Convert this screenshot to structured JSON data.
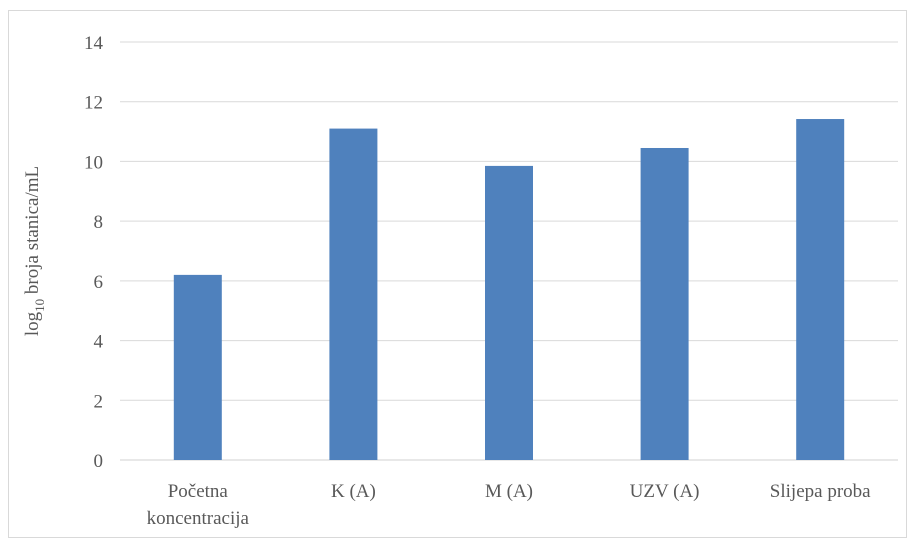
{
  "chart_data": {
    "type": "bar",
    "categories": [
      [
        "Početna",
        "koncentracija"
      ],
      [
        "K (A)"
      ],
      [
        "M (A)"
      ],
      [
        "UZV (A)"
      ],
      [
        "Slijepa proba"
      ]
    ],
    "values": [
      6.2,
      11.1,
      9.85,
      10.45,
      11.42
    ],
    "title": "",
    "xlabel": "",
    "ylabel": {
      "prefix": "log",
      "subscript": "10",
      "suffix": " broja stanica/mL"
    },
    "ylim": [
      0,
      14
    ],
    "yticks": [
      0,
      2,
      4,
      6,
      8,
      10,
      12,
      14
    ],
    "grid": true,
    "legend": "none",
    "bar_color": "#4f81bd"
  }
}
